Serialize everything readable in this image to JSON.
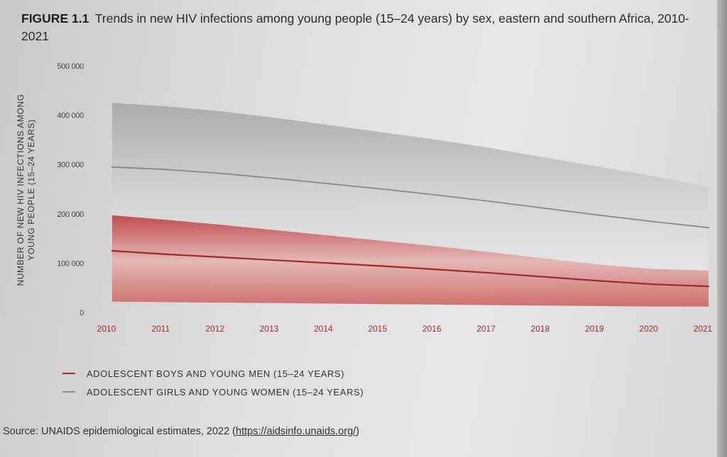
{
  "figure": {
    "label": "FIGURE 1.1",
    "title": "Trends in new HIV infections among young people (15–24 years) by sex, eastern and southern Africa, 2010-2021"
  },
  "chart_data": {
    "type": "line",
    "title": "Trends in new HIV infections among young people (15–24 years) by sex, eastern and southern Africa, 2010-2021",
    "xlabel": "",
    "ylabel": "NUMBER OF NEW HIV INFECTIONS AMONG YOUNG PEOPLE (15–24 YEARS)",
    "x": [
      2010,
      2011,
      2012,
      2013,
      2014,
      2015,
      2016,
      2017,
      2018,
      2019,
      2020,
      2021
    ],
    "ylim": [
      0,
      500000
    ],
    "y_ticks": [
      0,
      100000,
      200000,
      300000,
      400000,
      500000
    ],
    "y_tick_labels": [
      "0",
      "100 000",
      "200 000",
      "300 000",
      "400 000",
      "500 000"
    ],
    "grid": false,
    "legend_position": "bottom-left",
    "series": [
      {
        "name": "ADOLESCENT BOYS AND YOUNG MEN (15–24 YEARS)",
        "color": "#9e2a2b",
        "values": [
          125000,
          118000,
          112000,
          106000,
          100000,
          94000,
          87000,
          80000,
          72000,
          64000,
          57000,
          53000
        ],
        "lower": [
          22000,
          21000,
          20000,
          19000,
          18000,
          17000,
          16000,
          15000,
          14000,
          13000,
          12000,
          12000
        ],
        "upper": [
          197000,
          188000,
          178000,
          167000,
          156000,
          145000,
          134000,
          122000,
          109000,
          97000,
          88000,
          85000
        ]
      },
      {
        "name": "ADOLESCENT GIRLS AND YOUNG WOMEN (15–24 YEARS)",
        "color": "#8a8a8a",
        "values": [
          295000,
          290000,
          282000,
          272000,
          261000,
          250000,
          238000,
          225000,
          211000,
          197000,
          184000,
          172000
        ],
        "lower": [
          197000,
          188000,
          178000,
          167000,
          156000,
          145000,
          134000,
          122000,
          109000,
          97000,
          88000,
          85000
        ],
        "upper": [
          425000,
          418000,
          408000,
          395000,
          380000,
          365000,
          350000,
          333000,
          314000,
          295000,
          276000,
          255000
        ]
      }
    ]
  },
  "source": {
    "text": "Source: UNAIDS epidemiological estimates, 2022 (",
    "url": "https://aidsinfo.unaids.org/",
    "close": ")"
  }
}
